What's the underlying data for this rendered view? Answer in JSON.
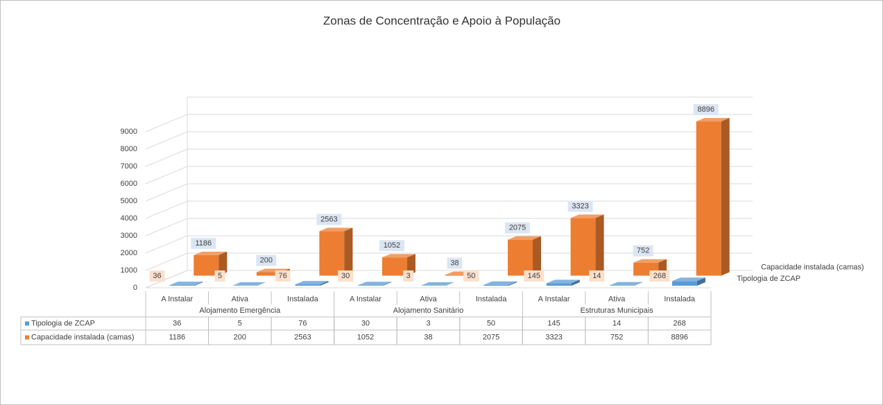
{
  "chart_data": {
    "type": "bar3d",
    "title": "Zonas de Concentração  e Apoio à População",
    "groups": [
      {
        "name": "Alojamento Emergência",
        "categories": [
          "A Instalar",
          "Ativa",
          "Instalada"
        ]
      },
      {
        "name": "Alojamento Sanitário",
        "categories": [
          "A Instalar",
          "Ativa",
          "Instalada"
        ]
      },
      {
        "name": "Estruturas Municipais",
        "categories": [
          "A Instalar",
          "Ativa",
          "Instalada"
        ]
      }
    ],
    "series": [
      {
        "name": "Tipologia de ZCAP",
        "color": "#5b9bd5",
        "values": [
          36,
          5,
          76,
          30,
          3,
          50,
          145,
          14,
          268
        ]
      },
      {
        "name": "Capacidade instalada (camas)",
        "color": "#ed7d31",
        "values": [
          1186,
          200,
          2563,
          1052,
          38,
          2075,
          3323,
          752,
          8896
        ]
      }
    ],
    "ylim": [
      0,
      10000
    ],
    "yticks": [
      0,
      1000,
      2000,
      3000,
      4000,
      5000,
      6000,
      7000,
      8000,
      9000
    ],
    "grid": true,
    "data_table": true
  }
}
